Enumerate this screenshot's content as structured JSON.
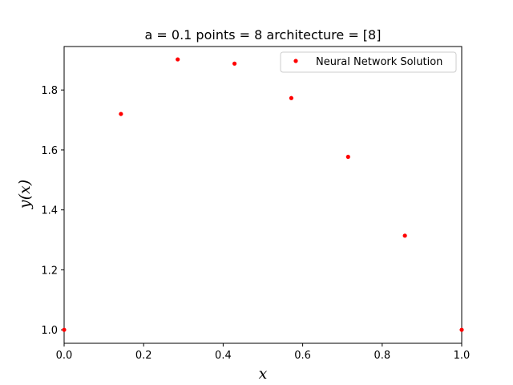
{
  "chart_data": {
    "type": "scatter",
    "title": "a = 0.1 points = 8 architecture = [8]",
    "xlabel": "x",
    "ylabel": "y(x)",
    "xlim": [
      0.0,
      1.0
    ],
    "ylim": [
      0.955,
      1.945
    ],
    "xticks": [
      0.0,
      0.2,
      0.4,
      0.6,
      0.8,
      1.0
    ],
    "xtick_labels": [
      "0.0",
      "0.2",
      "0.4",
      "0.6",
      "0.8",
      "1.0"
    ],
    "yticks": [
      1.0,
      1.2,
      1.4,
      1.6,
      1.8
    ],
    "ytick_labels": [
      "1.0",
      "1.2",
      "1.4",
      "1.6",
      "1.8"
    ],
    "grid": false,
    "legend_position": "top-right",
    "series": [
      {
        "name": "Neural Network Solution",
        "color": "#ff0000",
        "marker": "dot",
        "x": [
          0.0,
          0.1429,
          0.2857,
          0.4286,
          0.5714,
          0.7143,
          0.8571,
          1.0
        ],
        "y": [
          1.0,
          1.72,
          1.902,
          1.888,
          1.773,
          1.577,
          1.314,
          1.0
        ]
      }
    ]
  }
}
